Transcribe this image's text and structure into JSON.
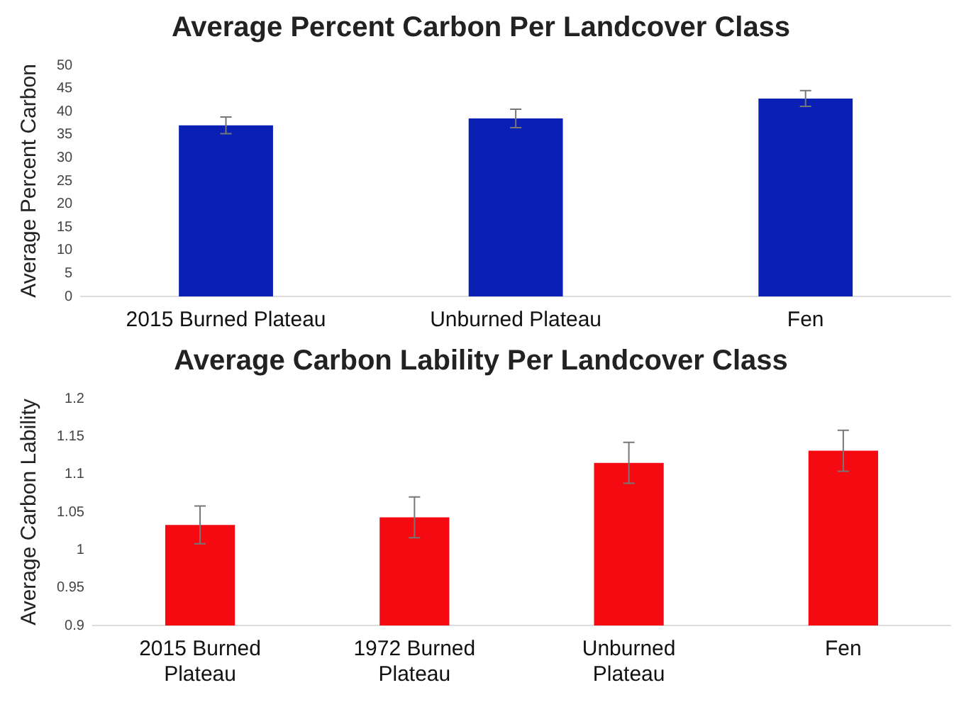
{
  "chart_data": [
    {
      "type": "bar",
      "title": "Average Percent Carbon Per Landcover Class",
      "ylabel": "Average Percent Carbon",
      "categories": [
        "2015 Burned Plateau",
        "Unburned Plateau",
        "Fen"
      ],
      "values": [
        37,
        38.5,
        42.8
      ],
      "errors": [
        1.8,
        2,
        1.7
      ],
      "color": "#0a1fb4",
      "ylim": [
        0,
        50
      ],
      "yticks": [
        0,
        5,
        10,
        15,
        20,
        25,
        30,
        35,
        40,
        45,
        50
      ],
      "grid": false
    },
    {
      "type": "bar",
      "title": "Average Carbon Lability Per Landcover Class",
      "ylabel": "Average Carbon Lability",
      "categories": [
        "2015 Burned Plateau",
        "1972 Burned Plateau",
        "Unburned Plateau",
        "Fen"
      ],
      "values": [
        1.033,
        1.043,
        1.115,
        1.131
      ],
      "errors": [
        0.025,
        0.027,
        0.027,
        0.027
      ],
      "color": "#f50a12",
      "ylim": [
        0.9,
        1.2
      ],
      "yticks": [
        0.9,
        0.95,
        1,
        1.05,
        1.1,
        1.15,
        1.2
      ],
      "grid": false
    }
  ]
}
